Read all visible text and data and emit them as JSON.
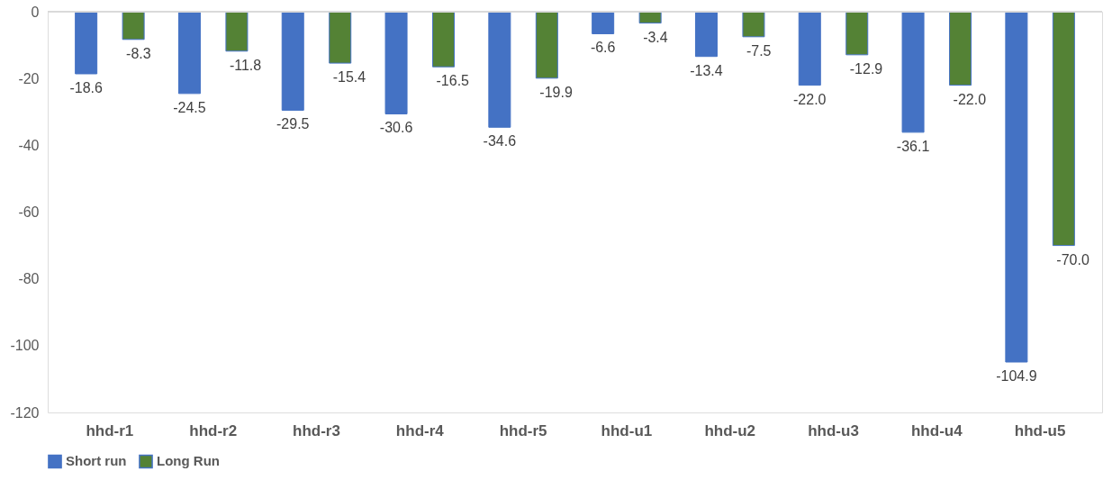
{
  "chart_data": {
    "type": "bar",
    "categories": [
      "hhd-r1",
      "hhd-r2",
      "hhd-r3",
      "hhd-r4",
      "hhd-r5",
      "hhd-u1",
      "hhd-u2",
      "hhd-u3",
      "hhd-u4",
      "hhd-u5"
    ],
    "series": [
      {
        "name": "Short run",
        "color": "#4472c4",
        "values": [
          -18.6,
          -24.5,
          -29.5,
          -30.6,
          -34.6,
          -6.6,
          -13.4,
          -22.0,
          -36.1,
          -104.9
        ],
        "value_labels": [
          "-18.6",
          "-24.5",
          "-29.5",
          "-30.6",
          "-34.6",
          "-6.6",
          "-13.4",
          "-22.0",
          "-36.1",
          "-104.9"
        ]
      },
      {
        "name": "Long Run",
        "color": "#548235",
        "values": [
          -8.3,
          -11.8,
          -15.4,
          -16.5,
          -19.9,
          -3.4,
          -7.5,
          -12.9,
          -22.0,
          -70.0
        ],
        "value_labels": [
          "-8.3",
          "-11.8",
          "-15.4",
          "-16.5",
          "-19.9",
          "-3.4",
          "-7.5",
          "-12.9",
          "-22.0",
          "-70.0"
        ]
      }
    ],
    "ylim": [
      -120,
      0
    ],
    "yticks": [
      -120,
      -100,
      -80,
      -60,
      -40,
      -20,
      0
    ],
    "grid": false,
    "legend": "bottom"
  }
}
